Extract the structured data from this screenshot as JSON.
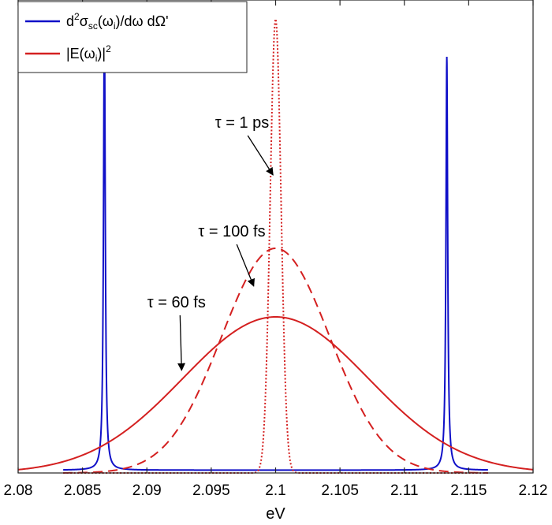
{
  "chart_data": {
    "type": "line",
    "title": "",
    "xlabel": "eV",
    "ylabel": "",
    "xlim": [
      2.08,
      2.12
    ],
    "ylim": [
      0,
      1
    ],
    "x_ticks": [
      2.08,
      2.085,
      2.09,
      2.095,
      2.1,
      2.105,
      2.11,
      2.115,
      2.12
    ],
    "x_tick_labels": [
      "2.08",
      "2.085",
      "2.09",
      "2.095",
      "2.1",
      "2.105",
      "2.11",
      "2.115",
      "2.12"
    ],
    "y_ticks_shown": false,
    "grid": false,
    "legend_position": "top-left",
    "legend": [
      {
        "text": "d²σsc(ωi)/dω dΩ'",
        "color": "#1010c8",
        "style": "solid"
      },
      {
        "text": "|E(ωi)|²",
        "color": "#d42020",
        "style": "solid"
      }
    ],
    "series": [
      {
        "color": "#1010c8",
        "style": "solid",
        "kind": "resonance",
        "baseline": 0.006,
        "peaks": [
          {
            "x": 2.0867,
            "y": 0.97,
            "width": 8e-05
          },
          {
            "x": 2.1133,
            "y": 0.88,
            "width": 8e-05
          }
        ],
        "x_range": [
          2.0835,
          2.1165
        ]
      },
      {
        "color": "#d42020",
        "style": "dotted",
        "kind": "gaussian",
        "center": 2.1,
        "peak": 0.96,
        "sigma": 0.00042,
        "x_range": [
          2.0835,
          2.1165
        ]
      },
      {
        "color": "#d42020",
        "style": "dashed",
        "kind": "gaussian",
        "center": 2.1,
        "peak": 0.475,
        "sigma": 0.0042,
        "x_range": [
          2.0835,
          2.1165
        ]
      },
      {
        "color": "#d42020",
        "style": "solid",
        "kind": "gaussian",
        "center": 2.1,
        "peak": 0.33,
        "sigma": 0.0072,
        "x_range": [
          2.08,
          2.12
        ]
      }
    ],
    "annotations": [
      {
        "text": "τ = 1 ps",
        "x": 2.0974,
        "y": 0.73,
        "arrow_to": [
          2.0998,
          0.63
        ]
      },
      {
        "text": "τ = 100 fs",
        "x": 2.0966,
        "y": 0.5,
        "arrow_to": [
          2.0983,
          0.395
        ]
      },
      {
        "text": "τ = 60 fs",
        "x": 2.0923,
        "y": 0.35,
        "arrow_to": [
          2.0927,
          0.217
        ]
      }
    ]
  }
}
